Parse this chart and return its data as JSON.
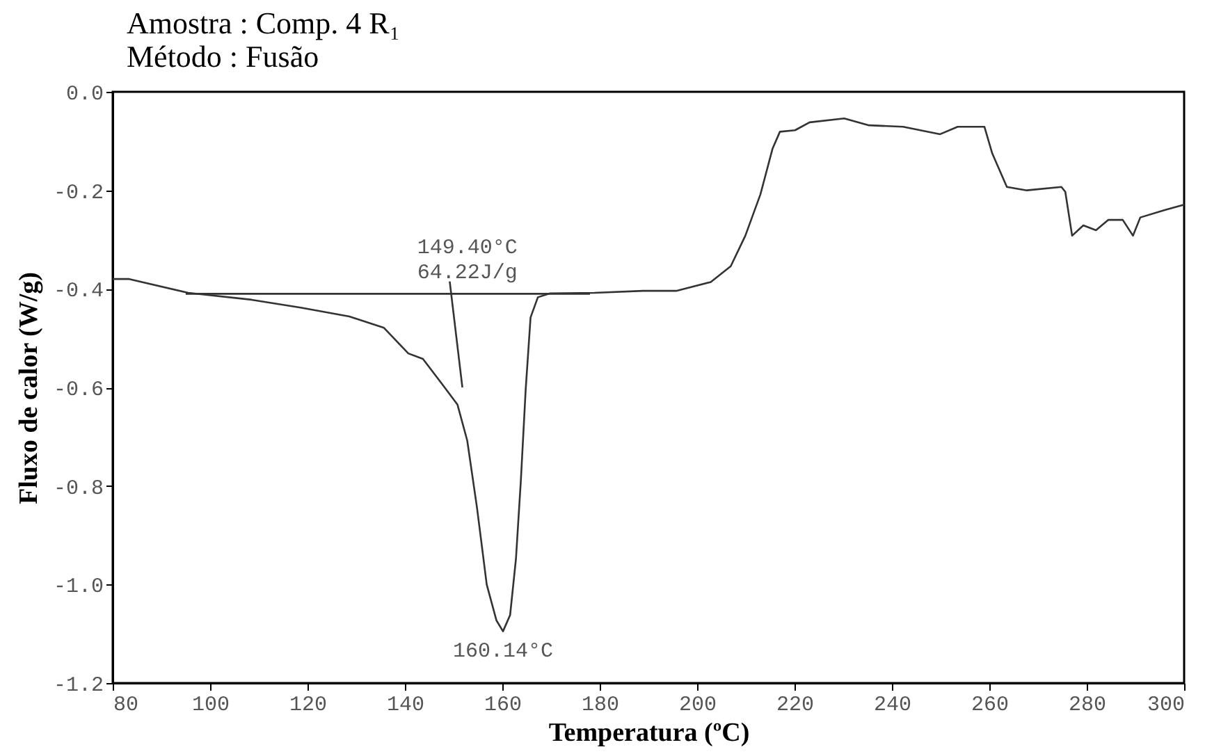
{
  "chart_data": {
    "type": "line",
    "title": "Amostra     : Comp. 4 R₁",
    "subtitle": "Método      : Fusão",
    "xlabel": "Temperatura (ºC)",
    "ylabel": "Fluxo de calor (W/g)",
    "xlim": [
      80,
      300
    ],
    "xticks": [
      80,
      100,
      120,
      140,
      160,
      180,
      200,
      220,
      240,
      260,
      280,
      300
    ],
    "ylim": [
      -1.2,
      0
    ],
    "yticks": [
      {
        "value": -1.2,
        "label": "-1.2"
      },
      {
        "value": -1,
        "label": "-1.0"
      },
      -0.8,
      -0.6,
      -0.4,
      -0.2,
      {
        "value": 0,
        "label": "0.0"
      }
    ],
    "grid": false,
    "series": [
      {
        "color": "#333333",
        "x": [
          80,
          83.4,
          95.5,
          108.5,
          118.6,
          128.6,
          135.7,
          140.7,
          143.7,
          147.7,
          150.8,
          152.8,
          154.8,
          156.8,
          158.8,
          160.14,
          161.6,
          162.8,
          163.8,
          164.8,
          165.8,
          167.3,
          169.8,
          178.9,
          188.9,
          195.7,
          202.8,
          206.9,
          209.9,
          213,
          215.5,
          217,
          220.1,
          223.1,
          230.2,
          235.3,
          242.3,
          249.9,
          253.5,
          259,
          260.6,
          263.6,
          267.7,
          274.8,
          275.6,
          277,
          279.3,
          281.9,
          284.4,
          287.4,
          289.5,
          291,
          296,
          300
        ],
        "values": [
          -0.38,
          -0.38,
          -0.408,
          -0.422,
          -0.438,
          -0.456,
          -0.479,
          -0.531,
          -0.542,
          -0.594,
          -0.635,
          -0.708,
          -0.844,
          -1.0,
          -1.073,
          -1.095,
          -1.062,
          -0.948,
          -0.79,
          -0.604,
          -0.458,
          -0.417,
          -0.409,
          -0.408,
          -0.404,
          -0.404,
          -0.386,
          -0.354,
          -0.292,
          -0.208,
          -0.115,
          -0.081,
          -0.078,
          -0.062,
          -0.054,
          -0.068,
          -0.071,
          -0.086,
          -0.071,
          -0.071,
          -0.125,
          -0.193,
          -0.2,
          -0.193,
          -0.203,
          -0.292,
          -0.271,
          -0.281,
          -0.26,
          -0.26,
          -0.292,
          -0.255,
          -0.24,
          -0.229
        ]
      },
      {
        "color": "#333333",
        "x": [
          95,
          178
        ],
        "values": [
          -0.41,
          -0.41
        ]
      },
      {
        "color": "#333333",
        "x": [
          149.2,
          151.8
        ],
        "values": [
          -0.385,
          -0.6
        ]
      }
    ],
    "annotations": [
      {
        "text": "149.40°C\n64.22J/g",
        "x": 149.4,
        "y": -0.41
      },
      {
        "text": "160.14°C",
        "x": 160.14,
        "y": -1.095
      }
    ]
  }
}
